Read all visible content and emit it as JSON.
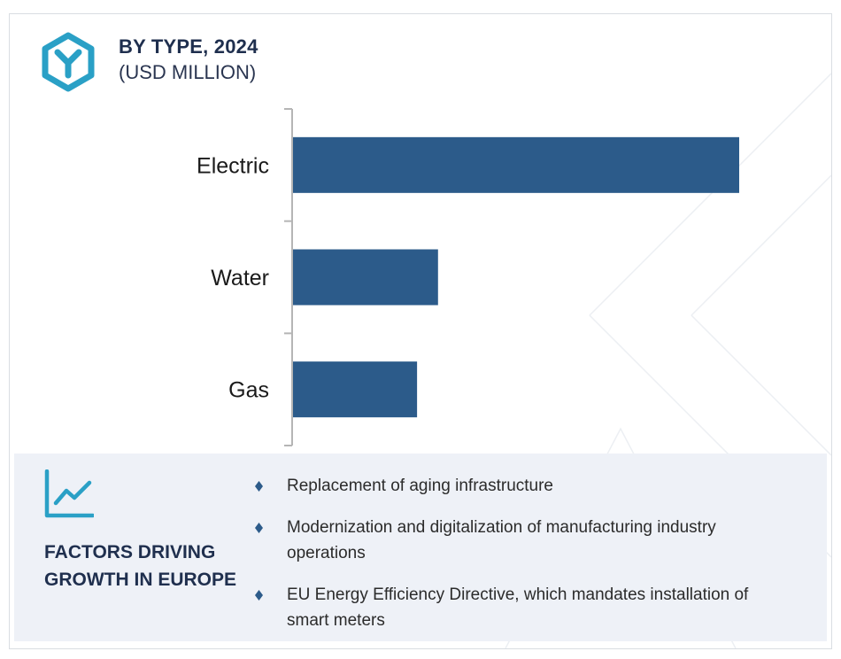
{
  "header": {
    "title": "BY TYPE, 2024",
    "subtitle": "(USD MILLION)",
    "icon": "hexagon-y-logo-icon"
  },
  "chart_data": {
    "type": "bar",
    "orientation": "horizontal",
    "categories": [
      "Electric",
      "Water",
      "Gas"
    ],
    "values": [
      100,
      32.5,
      27.8
    ],
    "title": "BY TYPE, 2024",
    "subtitle": "(USD MILLION)",
    "xlabel": "",
    "ylabel": "",
    "xlim": [
      0,
      100
    ],
    "grid": false,
    "legend": "none",
    "bar_color": "#2c5b8a",
    "axis_color": "#b5b5b5"
  },
  "factors": {
    "icon": "trend-chart-icon",
    "title": "FACTORS DRIVING GROWTH IN EUROPE",
    "items": [
      {
        "text": "Replacement of aging infrastructure"
      },
      {
        "text": "Modernization and digitalization of manufacturing industry operations"
      },
      {
        "text": "EU Energy Efficiency Directive, which mandates installation of smart meters"
      }
    ]
  },
  "colors": {
    "accent": "#2aa0c6",
    "title": "#1f2f4e",
    "bar": "#2c5b8a",
    "panel_bg": "#eef1f7"
  }
}
